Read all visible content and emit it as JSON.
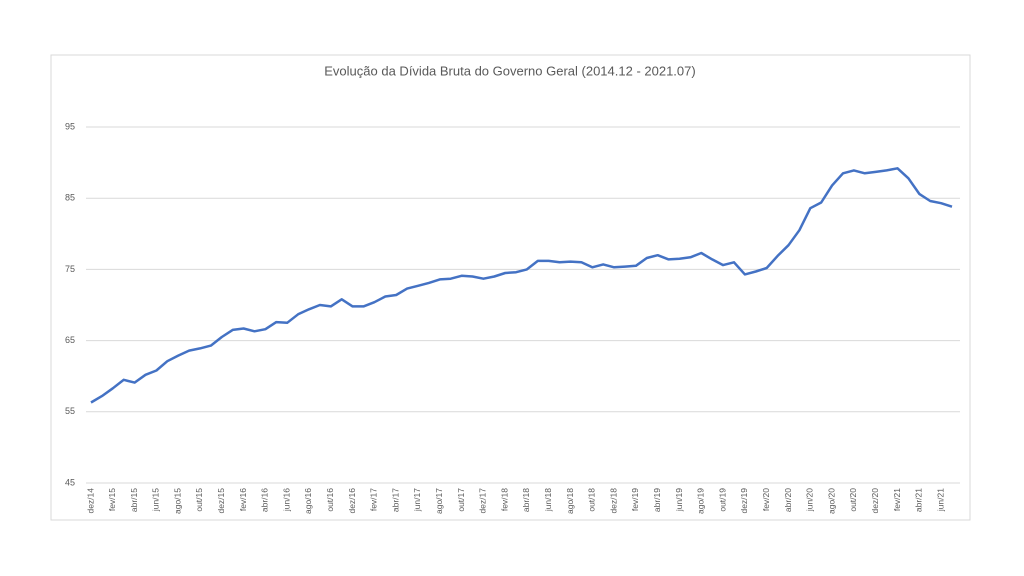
{
  "chart_data": {
    "type": "line",
    "title": "Evolução da Dívida Bruta do Governo Geral (2014.12 - 2021.07)",
    "categories": [
      "dez/14",
      null,
      "fev/15",
      null,
      "abr/15",
      null,
      "jun/15",
      null,
      "ago/15",
      null,
      "out/15",
      null,
      "dez/15",
      null,
      "fev/16",
      null,
      "abr/16",
      null,
      "jun/16",
      null,
      "ago/16",
      null,
      "out/16",
      null,
      "dez/16",
      null,
      "fev/17",
      null,
      "abr/17",
      null,
      "jun/17",
      null,
      "ago/17",
      null,
      "out/17",
      null,
      "dez/17",
      null,
      "fev/18",
      null,
      "abr/18",
      null,
      "jun/18",
      null,
      "ago/18",
      null,
      "out/18",
      null,
      "dez/18",
      null,
      "fev/19",
      null,
      "abr/19",
      null,
      "jun/19",
      null,
      "ago/19",
      null,
      "out/19",
      null,
      "dez/19",
      null,
      "fev/20",
      null,
      "abr/20",
      null,
      "jun/20",
      null,
      "ago/20",
      null,
      "out/20",
      null,
      "dez/20",
      null,
      "fev/21",
      null,
      "abr/21",
      null,
      "jun/21",
      null
    ],
    "series": [
      {
        "name": "Dívida Bruta",
        "color": "#4472c4",
        "values": [
          56.3,
          57.2,
          58.3,
          59.5,
          59.1,
          60.2,
          60.8,
          62.1,
          62.9,
          63.6,
          63.9,
          64.3,
          65.5,
          66.5,
          66.7,
          66.3,
          66.6,
          67.6,
          67.5,
          68.7,
          69.4,
          70.0,
          69.8,
          70.8,
          69.8,
          69.8,
          70.4,
          71.2,
          71.4,
          72.3,
          72.7,
          73.1,
          73.6,
          73.7,
          74.1,
          74.0,
          73.7,
          74.0,
          74.5,
          74.6,
          75.0,
          76.2,
          76.2,
          76.0,
          76.1,
          76.0,
          75.3,
          75.7,
          75.3,
          75.4,
          75.5,
          76.6,
          77.0,
          76.4,
          76.5,
          76.7,
          77.3,
          76.4,
          75.6,
          76.0,
          74.3,
          74.7,
          75.2,
          76.9,
          78.4,
          80.5,
          83.6,
          84.4,
          86.8,
          88.5,
          88.9,
          88.5,
          88.7,
          88.9,
          89.2,
          87.8,
          85.6,
          84.6,
          84.3,
          83.8
        ]
      }
    ],
    "ylim": [
      45,
      100
    ],
    "yticks": [
      45,
      55,
      65,
      75,
      85,
      95
    ],
    "grid": true
  }
}
